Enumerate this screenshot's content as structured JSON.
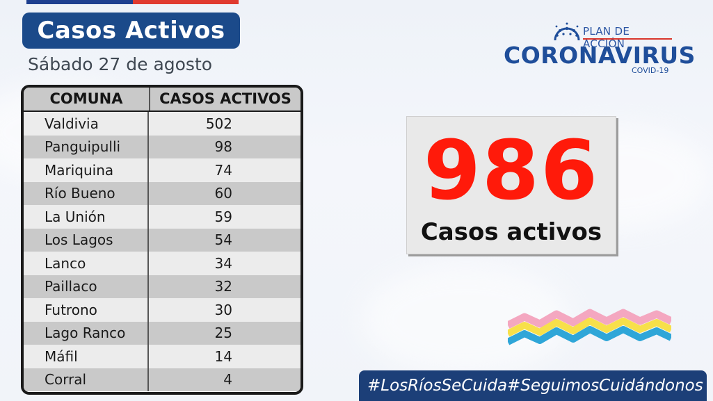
{
  "header": {
    "title": "Casos Activos",
    "date": "Sábado 27 de agosto"
  },
  "logo": {
    "plan": "PLAN DE ACCIÓN",
    "name": "CORONAVIRUS",
    "sub": "COVID-19"
  },
  "table": {
    "columns": [
      "COMUNA",
      "CASOS ACTIVOS"
    ],
    "rows": [
      {
        "comuna": "Valdivia",
        "casos": "502"
      },
      {
        "comuna": "Panguipulli",
        "casos": "98"
      },
      {
        "comuna": "Mariquina",
        "casos": "74"
      },
      {
        "comuna": "Río Bueno",
        "casos": "60"
      },
      {
        "comuna": "La Unión",
        "casos": "59"
      },
      {
        "comuna": "Los Lagos",
        "casos": "54"
      },
      {
        "comuna": "Lanco",
        "casos": "34"
      },
      {
        "comuna": "Paillaco",
        "casos": "32"
      },
      {
        "comuna": "Futrono",
        "casos": "30"
      },
      {
        "comuna": "Lago Ranco",
        "casos": "25"
      },
      {
        "comuna": "Máfil",
        "casos": "14"
      },
      {
        "comuna": "Corral",
        "casos": "4"
      }
    ]
  },
  "summary": {
    "total": "986",
    "label": "Casos activos"
  },
  "hashtags": [
    "#LosRíosSeCuida",
    "#SeguimosCuidándonos"
  ],
  "colors": {
    "brand_blue": "#1b4a8a",
    "accent_red": "#ff1a0a",
    "hashbar_blue": "#1c3f78"
  }
}
